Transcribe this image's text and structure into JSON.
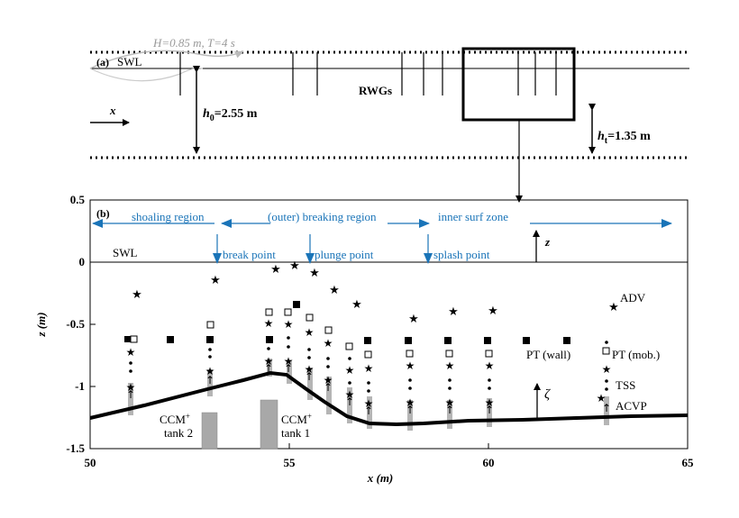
{
  "panel_a": {
    "label": "(a)",
    "swl_label": "SWL",
    "wave_label": "H=0.85 m, T=4 s",
    "x_label": "x",
    "h0_label": "h0=2.55 m",
    "h0_sym": "h",
    "h0_sub": "0",
    "h0_val": "=2.55 m",
    "rwg_label": "RWGs",
    "ht_sym": "h",
    "ht_sub": "t",
    "ht_val": "=1.35 m"
  },
  "panel_b": {
    "label": "(b)",
    "swl_label": "SWL",
    "regions": {
      "shoaling": "shoaling region",
      "breaking": "(outer) breaking region",
      "inner": "inner surf zone"
    },
    "points": {
      "break": "break point",
      "plunge": "plunge point",
      "splash": "splash point"
    },
    "z_arrow_label": "z",
    "zeta_label": "ζ",
    "legend": {
      "adv": "ADV",
      "pt_mob": "PT (mob.)",
      "pt_wall": "PT (wall)",
      "tss": "TSS",
      "acvp": "ACVP"
    },
    "tanks": {
      "tank2_a": "CCM",
      "tank2_sup": "+",
      "tank2_b": "tank 2",
      "tank1_a": "CCM",
      "tank1_sup": "+",
      "tank1_b": "tank 1"
    },
    "xlabel": "x (m)",
    "ylabel": "z (m)",
    "x_ticks": [
      "50",
      "55",
      "60",
      "65"
    ],
    "y_ticks": [
      "0.5",
      "0",
      "-0.5",
      "-1",
      "-1.5"
    ],
    "xlim": [
      50,
      65
    ],
    "ylim": [
      -1.5,
      0.5
    ]
  },
  "colors": {
    "accent_blue": "#1a74b8",
    "gray": "#b5b5b5",
    "tank_gray": "#a8a8a8"
  }
}
